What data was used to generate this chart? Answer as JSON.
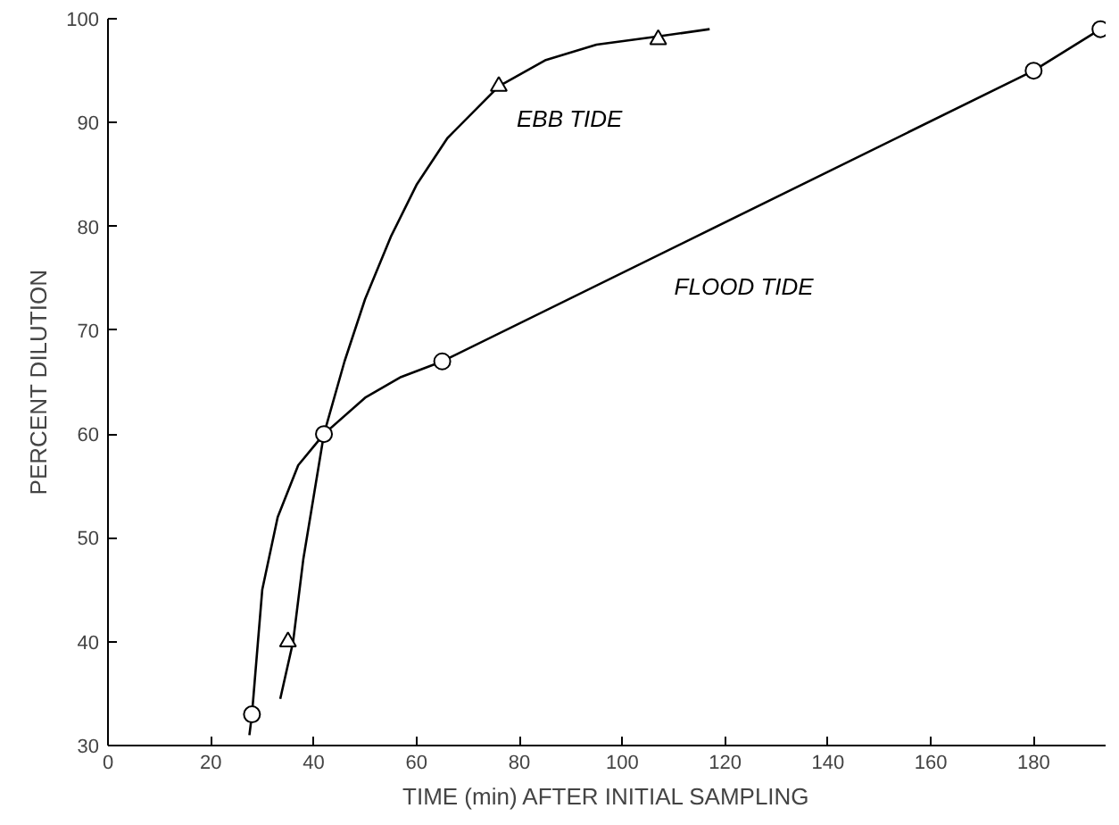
{
  "chart_data": {
    "type": "line",
    "xlabel": "TIME (min) AFTER INITIAL SAMPLING",
    "ylabel": "PERCENT DILUTION",
    "xlim": [
      0,
      194
    ],
    "ylim": [
      30,
      100
    ],
    "xticks": [
      0,
      20,
      40,
      60,
      80,
      100,
      120,
      140,
      160,
      180
    ],
    "yticks": [
      30,
      40,
      50,
      60,
      70,
      80,
      90,
      100
    ],
    "grid": false,
    "legend": false,
    "series": [
      {
        "name": "EBB TIDE",
        "color": "#000000",
        "marker": "none",
        "x": [
          33.5,
          36,
          38,
          40,
          42,
          46,
          50,
          55,
          60,
          66,
          76,
          85,
          95,
          107,
          117
        ],
        "values": [
          34.5,
          40,
          48,
          54,
          60,
          67,
          73,
          79,
          84,
          88.5,
          93.5,
          96,
          97.5,
          98.3,
          99
        ]
      },
      {
        "name": "FLOOD TIDE",
        "color": "#000000",
        "marker": "none",
        "x": [
          27.5,
          28,
          30,
          33,
          37,
          42,
          50,
          57,
          65,
          180,
          193
        ],
        "values": [
          31,
          33,
          45,
          52,
          57,
          60,
          63.5,
          65.5,
          67,
          95,
          99
        ]
      },
      {
        "type": "scatter",
        "color": "#000000",
        "marker": "triangle",
        "x": [
          35,
          76,
          107
        ],
        "values": [
          40,
          93.5,
          98
        ]
      },
      {
        "type": "scatter",
        "color": "#000000",
        "marker": "circle",
        "x": [
          28,
          42,
          65,
          180,
          193
        ],
        "values": [
          33,
          60,
          67,
          95,
          99
        ]
      }
    ]
  }
}
